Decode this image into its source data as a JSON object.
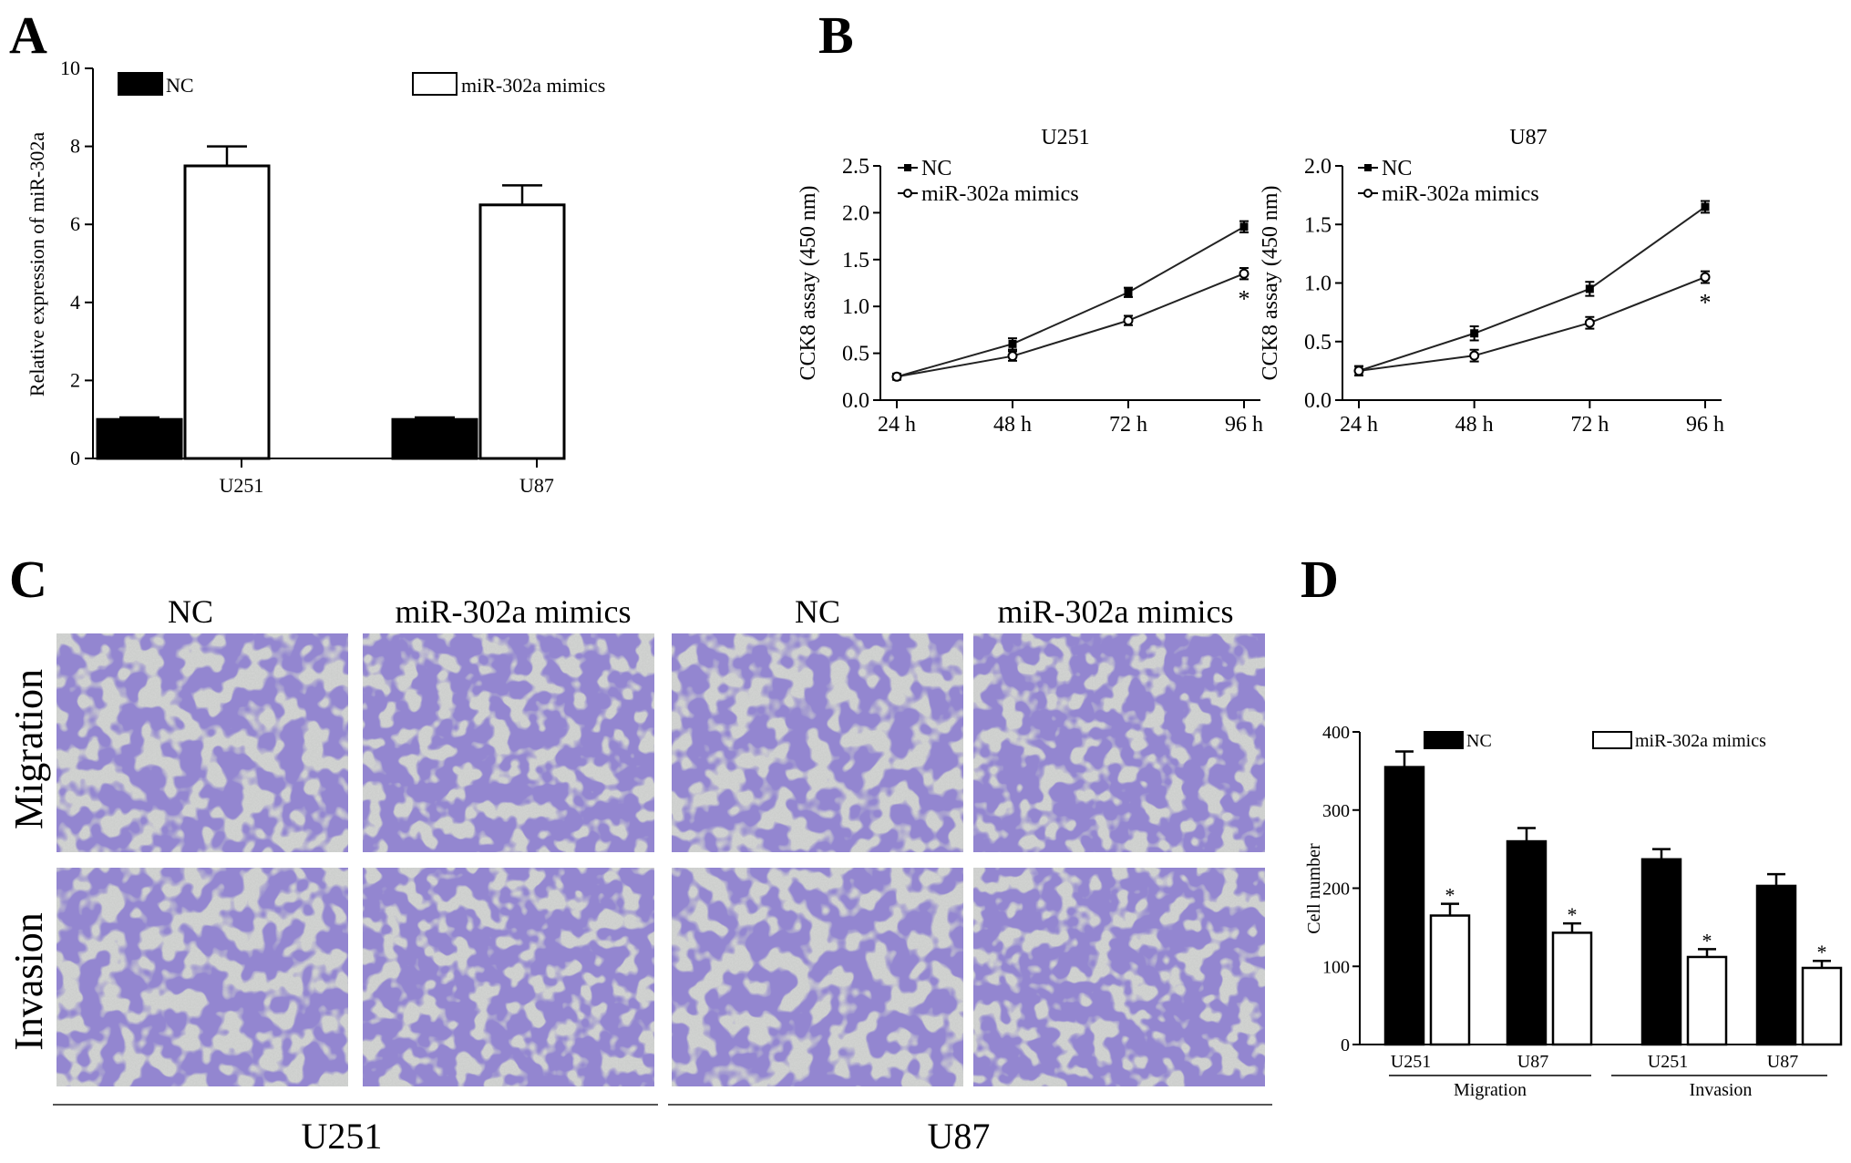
{
  "panels": {
    "A": {
      "letter": "A"
    },
    "B": {
      "letter": "B"
    },
    "C": {
      "letter": "C"
    },
    "D": {
      "letter": "D"
    }
  },
  "panel_c": {
    "column_labels": [
      "NC",
      "miR-302a mimics",
      "NC",
      "miR-302a mimics"
    ],
    "row_labels": [
      "Migration",
      "Invasion"
    ],
    "group_labels": [
      "U251",
      "U87"
    ],
    "stain_color": "#4a3ca0",
    "background_color": "#c9cbc9"
  },
  "colors": {
    "nc": "#000000",
    "mimics": "#ffffff"
  },
  "chart_data": [
    {
      "panel": "A",
      "type": "bar",
      "title": "",
      "xlabel": "",
      "ylabel": "Relative expression of miR-302a",
      "ylim": [
        0,
        10
      ],
      "yticks": [
        "0",
        "2",
        "4",
        "6",
        "8",
        "10"
      ],
      "categories": [
        "U251",
        "U87"
      ],
      "series": [
        {
          "name": "NC",
          "values": [
            1.0,
            1.0
          ],
          "errors": [
            0.05,
            0.05
          ]
        },
        {
          "name": "miR-302a mimics",
          "values": [
            7.5,
            6.5
          ],
          "errors": [
            0.5,
            0.5
          ]
        }
      ],
      "legend": "top",
      "grid": false
    },
    {
      "panel": "B",
      "type": "line",
      "title": "U251",
      "xlabel": "",
      "ylabel": "CCK8 assay (450 nm)",
      "ylim": [
        0,
        2.5
      ],
      "yticks": [
        "0.0",
        "0.5",
        "1.0",
        "1.5",
        "2.0",
        "2.5"
      ],
      "categories": [
        "24 h",
        "48 h",
        "72 h",
        "96 h"
      ],
      "series": [
        {
          "name": "NC",
          "values": [
            0.25,
            0.6,
            1.15,
            1.85
          ],
          "errors": [
            0.03,
            0.06,
            0.05,
            0.06
          ]
        },
        {
          "name": "miR-302a mimics",
          "values": [
            0.25,
            0.47,
            0.85,
            1.35
          ],
          "errors": [
            0.03,
            0.05,
            0.05,
            0.06
          ]
        }
      ],
      "annotations": [
        "*"
      ],
      "legend": "top-left",
      "grid": false
    },
    {
      "panel": "B",
      "type": "line",
      "title": "U87",
      "xlabel": "",
      "ylabel": "CCK8 assay (450 nm)",
      "ylim": [
        0,
        2.0
      ],
      "yticks": [
        "0.0",
        "0.5",
        "1.0",
        "1.5",
        "2.0"
      ],
      "categories": [
        "24 h",
        "48 h",
        "72 h",
        "96 h"
      ],
      "series": [
        {
          "name": "NC",
          "values": [
            0.25,
            0.57,
            0.95,
            1.65
          ],
          "errors": [
            0.04,
            0.06,
            0.06,
            0.05
          ]
        },
        {
          "name": "miR-302a mimics",
          "values": [
            0.25,
            0.38,
            0.66,
            1.05
          ],
          "errors": [
            0.04,
            0.05,
            0.05,
            0.05
          ]
        }
      ],
      "annotations": [
        "*"
      ],
      "legend": "top-left",
      "grid": false
    },
    {
      "panel": "D",
      "type": "bar",
      "title": "",
      "xlabel": "",
      "ylabel": "Cell number",
      "ylim": [
        0,
        400
      ],
      "yticks": [
        "0",
        "100",
        "200",
        "300",
        "400"
      ],
      "categories": [
        "U251",
        "U87",
        "U251",
        "U87"
      ],
      "groups": [
        "Migration",
        "Invasion"
      ],
      "series": [
        {
          "name": "NC",
          "values": [
            355,
            260,
            237,
            203
          ],
          "errors": [
            20,
            17,
            13,
            15
          ]
        },
        {
          "name": "miR-302a mimics",
          "values": [
            165,
            143,
            112,
            98
          ],
          "errors": [
            15,
            12,
            10,
            9
          ]
        }
      ],
      "annotations": [
        "*"
      ],
      "legend": "top",
      "grid": false
    }
  ]
}
